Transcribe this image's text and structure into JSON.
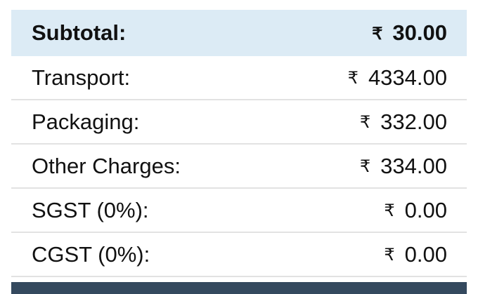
{
  "summary": {
    "subtotal": {
      "label": "Subtotal:",
      "currency": "₹",
      "value": "30.00"
    },
    "rows": [
      {
        "label": "Transport:",
        "currency": "₹",
        "value": "4334.00"
      },
      {
        "label": "Packaging:",
        "currency": "₹",
        "value": "332.00"
      },
      {
        "label": "Other Charges:",
        "currency": "₹",
        "value": "334.00"
      },
      {
        "label": "SGST (0%):",
        "currency": "₹",
        "value": "0.00"
      },
      {
        "label": "CGST (0%):",
        "currency": "₹",
        "value": "0.00"
      }
    ]
  },
  "colors": {
    "subtotal_bg": "#dcebf5",
    "footer_bar": "#34495e",
    "divider": "#e2e2e2"
  }
}
